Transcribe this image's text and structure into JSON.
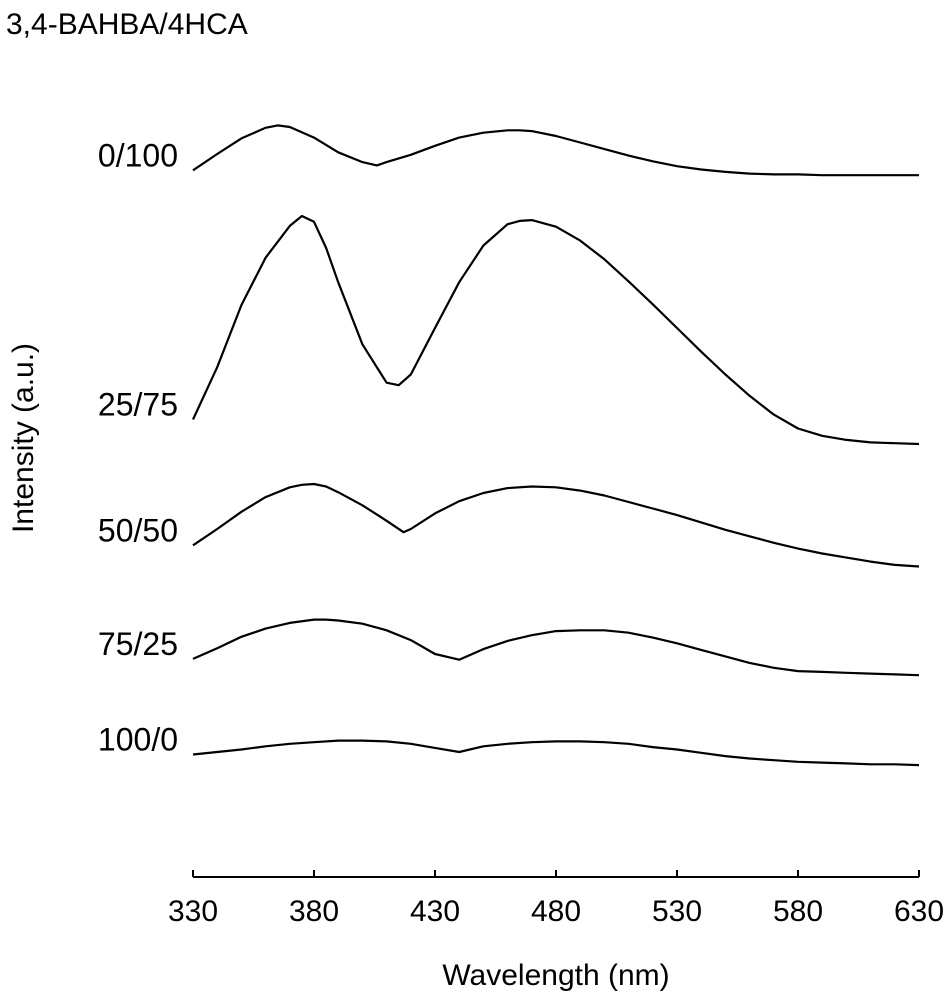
{
  "chart_data": {
    "type": "line",
    "title": "3,4-BAHBA/4HCA",
    "xlabel": "Wavelength (nm)",
    "ylabel": "Intensity (a.u.)",
    "xlim": [
      330,
      630
    ],
    "xticks": [
      "330",
      "380",
      "430",
      "480",
      "530",
      "580",
      "630"
    ],
    "offset_stacked": true,
    "y_tick_labels": false,
    "grid": false,
    "legend": "none",
    "line_color": "#000000",
    "ylim": [
      0,
      1000
    ],
    "series": [
      {
        "name": "0/100",
        "x": [
          330,
          340,
          350,
          360,
          365,
          370,
          380,
          390,
          400,
          406,
          410,
          420,
          430,
          440,
          450,
          460,
          465,
          470,
          480,
          490,
          500,
          510,
          520,
          530,
          540,
          550,
          560,
          570,
          580,
          590,
          600,
          610,
          620,
          630
        ],
        "y": [
          865,
          885,
          904,
          917,
          920,
          918,
          905,
          887,
          875,
          871,
          875,
          884,
          895,
          905,
          911,
          914,
          914,
          913,
          907,
          899,
          891,
          883,
          876,
          870,
          866,
          863,
          861,
          860,
          860,
          859,
          859,
          859,
          859,
          859
        ]
      },
      {
        "name": "25/75",
        "x": [
          330,
          340,
          350,
          360,
          370,
          375,
          380,
          385,
          390,
          400,
          410,
          415,
          420,
          430,
          440,
          450,
          460,
          465,
          470,
          480,
          490,
          500,
          510,
          520,
          530,
          540,
          550,
          560,
          570,
          580,
          590,
          600,
          610,
          620,
          630
        ],
        "y": [
          560,
          624,
          700,
          758,
          797,
          809,
          802,
          770,
          728,
          652,
          605,
          602,
          615,
          672,
          728,
          773,
          799,
          803,
          804,
          796,
          779,
          756,
          729,
          701,
          672,
          643,
          615,
          589,
          566,
          549,
          540,
          535,
          532,
          531,
          530
        ]
      },
      {
        "name": "50/50",
        "x": [
          330,
          340,
          350,
          360,
          370,
          375,
          380,
          385,
          390,
          400,
          410,
          417,
          420,
          430,
          440,
          450,
          460,
          470,
          480,
          490,
          500,
          510,
          520,
          530,
          540,
          550,
          560,
          570,
          580,
          590,
          600,
          610,
          620,
          630
        ],
        "y": [
          406,
          426,
          447,
          465,
          477,
          480,
          481,
          478,
          471,
          455,
          436,
          422,
          426,
          445,
          460,
          470,
          476,
          478,
          477,
          473,
          467,
          459,
          451,
          443,
          434,
          425,
          417,
          409,
          402,
          396,
          391,
          386,
          382,
          380
        ]
      },
      {
        "name": "75/25",
        "x": [
          330,
          340,
          350,
          360,
          370,
          380,
          385,
          390,
          400,
          410,
          420,
          430,
          440,
          450,
          460,
          470,
          480,
          490,
          500,
          510,
          520,
          530,
          540,
          550,
          560,
          570,
          580,
          590,
          600,
          610,
          620,
          630
        ],
        "y": [
          267,
          280,
          294,
          304,
          311,
          315,
          315,
          314,
          310,
          302,
          290,
          273,
          266,
          279,
          289,
          296,
          301,
          302,
          302,
          299,
          293,
          286,
          278,
          270,
          262,
          256,
          252,
          251,
          250,
          249,
          248,
          247
        ]
      },
      {
        "name": "100/0",
        "x": [
          330,
          340,
          350,
          360,
          370,
          380,
          390,
          400,
          410,
          420,
          430,
          440,
          450,
          460,
          470,
          480,
          490,
          500,
          510,
          520,
          530,
          540,
          550,
          560,
          570,
          580,
          590,
          600,
          610,
          620,
          630
        ],
        "y": [
          150,
          153,
          156,
          160,
          163,
          165,
          167,
          167,
          166,
          163,
          158,
          153,
          160,
          163,
          165,
          166,
          166,
          165,
          163,
          159,
          156,
          152,
          148,
          145,
          143,
          141,
          140,
          139,
          138,
          138,
          137
        ]
      }
    ]
  }
}
